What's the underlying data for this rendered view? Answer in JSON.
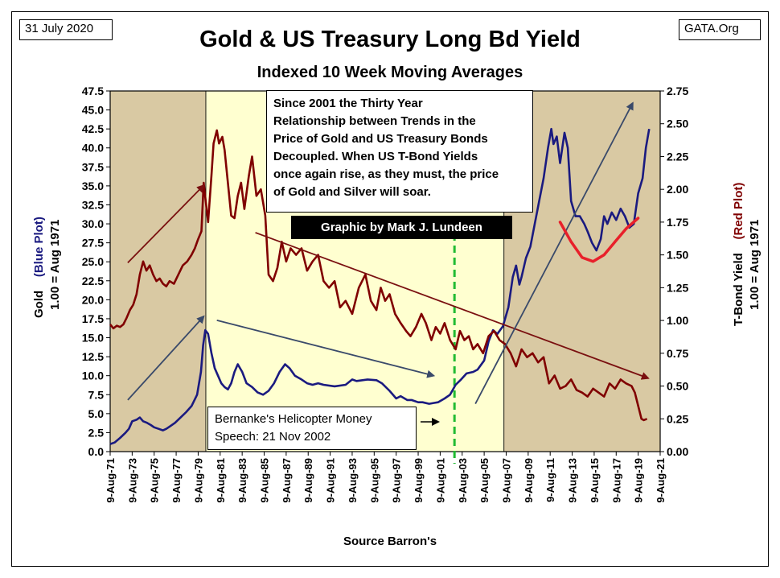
{
  "header": {
    "date": "31 July 2020",
    "source_tag": "GATA.Org",
    "title": "Gold & US Treasury Long Bd Yield",
    "subtitle": "Indexed 10 Week Moving Averages",
    "footer": "Source Barron's"
  },
  "annotations": {
    "note": "Since 2001 the Thirty Year\nRelationship between Trends in the\nPrice of Gold and US Treasury Bonds\nDecoupled.  When US T-Bond Yields\nonce again rise, as they must, the price\nof Gold and Silver will soar.",
    "credit": "Graphic by Mark J. Lundeen",
    "bernanke": "Bernanke's Helicopter Money\nSpeech: 21 Nov 2002"
  },
  "axis_labels": {
    "left_line1": "Gold",
    "left_line1_colored": "(Blue Plot)",
    "left_line2": "1.00 = Aug 1971",
    "right_line1": "T-Bond Yield",
    "right_line1_colored": "(Red Plot)",
    "right_line2": "1.00 = Aug 1971"
  },
  "colors": {
    "gold": "#1a1a80",
    "bond": "#800000",
    "trend_red": "#7a1010",
    "trend_blue": "#3a4a6a",
    "bowl": "#e8202a",
    "shade_tan": "#d9c9a3",
    "shade_yellow": "#ffffd0",
    "bernanke_line": "#22bb33"
  },
  "chart_data": {
    "type": "line",
    "x_ticks": [
      "9-Aug-71",
      "9-Aug-73",
      "9-Aug-75",
      "9-Aug-77",
      "9-Aug-79",
      "9-Aug-81",
      "9-Aug-83",
      "9-Aug-85",
      "9-Aug-87",
      "9-Aug-89",
      "9-Aug-91",
      "9-Aug-93",
      "9-Aug-95",
      "9-Aug-97",
      "9-Aug-99",
      "9-Aug-01",
      "9-Aug-03",
      "9-Aug-05",
      "9-Aug-07",
      "9-Aug-09",
      "9-Aug-11",
      "9-Aug-13",
      "9-Aug-15",
      "9-Aug-17",
      "9-Aug-19",
      "9-Aug-21"
    ],
    "x_range": [
      1971.6,
      2021.6
    ],
    "y_left": {
      "range": [
        0,
        47.5
      ],
      "ticks": [
        "0.0",
        "2.5",
        "5.0",
        "7.5",
        "10.0",
        "12.5",
        "15.0",
        "17.5",
        "20.0",
        "22.5",
        "25.0",
        "27.5",
        "30.0",
        "32.5",
        "35.0",
        "37.5",
        "40.0",
        "42.5",
        "45.0",
        "47.5"
      ]
    },
    "y_right": {
      "range": [
        0,
        2.75
      ],
      "ticks": [
        "0.00",
        "0.25",
        "0.50",
        "0.75",
        "1.00",
        "1.25",
        "1.50",
        "1.75",
        "2.00",
        "2.25",
        "2.50",
        "2.75"
      ]
    },
    "shaded_regions": [
      {
        "from": 1971.6,
        "to": 1980.3,
        "fill": "tan"
      },
      {
        "from": 1980.3,
        "to": 2007.4,
        "fill": "yellow"
      },
      {
        "from": 2007.4,
        "to": 2021.6,
        "fill": "tan"
      }
    ],
    "event_line": {
      "x": 2002.9
    },
    "series": [
      {
        "name": "Gold (Blue Plot)",
        "axis": "left",
        "x": [
          1971.6,
          1972.0,
          1972.5,
          1973.0,
          1973.3,
          1973.6,
          1974.0,
          1974.3,
          1974.6,
          1974.95,
          1975.3,
          1975.6,
          1976.0,
          1976.4,
          1976.7,
          1977.0,
          1977.5,
          1978.0,
          1978.5,
          1979.0,
          1979.5,
          1979.85,
          1980.05,
          1980.25,
          1980.5,
          1980.8,
          1981.1,
          1981.4,
          1981.7,
          1982.0,
          1982.3,
          1982.6,
          1982.9,
          1983.2,
          1983.6,
          1984.0,
          1984.5,
          1985.0,
          1985.5,
          1986.0,
          1986.5,
          1987.0,
          1987.5,
          1987.9,
          1988.4,
          1989.0,
          1989.5,
          1990.0,
          1990.5,
          1991.0,
          1992.0,
          1993.0,
          1993.6,
          1994.0,
          1995.0,
          1995.8,
          1996.3,
          1997.0,
          1997.6,
          1998.0,
          1998.6,
          1999.0,
          1999.6,
          2000.0,
          2000.6,
          2001.0,
          2001.4,
          2002.0,
          2002.5,
          2003.0,
          2003.5,
          2004.0,
          2004.6,
          2005.0,
          2005.6,
          2006.0,
          2006.4,
          2006.8,
          2007.3,
          2007.8,
          2008.2,
          2008.5,
          2008.8,
          2009.0,
          2009.4,
          2009.8,
          2010.2,
          2010.6,
          2011.0,
          2011.4,
          2011.7,
          2011.9,
          2012.2,
          2012.5,
          2012.9,
          2013.2,
          2013.5,
          2013.9,
          2014.3,
          2014.7,
          2015.0,
          2015.4,
          2015.8,
          2016.2,
          2016.5,
          2016.8,
          2017.2,
          2017.6,
          2018.0,
          2018.4,
          2018.8,
          2019.2,
          2019.6,
          2020.0,
          2020.3,
          2020.6
        ],
        "values": [
          1.0,
          1.2,
          1.8,
          2.5,
          3.0,
          4.0,
          4.2,
          4.5,
          4.0,
          3.8,
          3.5,
          3.2,
          3.0,
          2.8,
          3.0,
          3.3,
          3.8,
          4.5,
          5.2,
          6.0,
          7.5,
          10.5,
          14.0,
          16.0,
          15.5,
          13.0,
          11.0,
          10.0,
          9.0,
          8.5,
          8.2,
          9.0,
          10.5,
          11.5,
          10.5,
          9.0,
          8.5,
          7.8,
          7.5,
          8.0,
          9.0,
          10.5,
          11.5,
          11.0,
          10.0,
          9.5,
          9.0,
          8.8,
          9.0,
          8.8,
          8.6,
          8.8,
          9.5,
          9.3,
          9.5,
          9.4,
          9.0,
          8.0,
          7.0,
          7.3,
          6.8,
          6.8,
          6.5,
          6.5,
          6.3,
          6.4,
          6.5,
          7.0,
          7.5,
          8.8,
          9.5,
          10.3,
          10.5,
          10.8,
          12.0,
          14.5,
          16.0,
          15.5,
          16.5,
          19.0,
          23.0,
          24.5,
          22.0,
          23.0,
          25.5,
          27.0,
          30.0,
          33.0,
          36.0,
          40.0,
          42.5,
          40.5,
          41.5,
          38.0,
          42.0,
          40.0,
          33.0,
          31.0,
          31.0,
          30.0,
          29.0,
          27.5,
          26.5,
          28.0,
          31.0,
          30.0,
          31.5,
          30.5,
          32.0,
          31.0,
          29.5,
          30.0,
          34.0,
          36.0,
          40.0,
          42.5
        ]
      },
      {
        "name": "T-Bond Yield (Red Plot)",
        "axis": "right",
        "x": [
          1971.6,
          1971.9,
          1972.2,
          1972.5,
          1972.8,
          1973.1,
          1973.4,
          1973.7,
          1974.0,
          1974.3,
          1974.6,
          1974.9,
          1975.2,
          1975.5,
          1975.8,
          1976.1,
          1976.4,
          1976.7,
          1977.0,
          1977.4,
          1977.8,
          1978.2,
          1978.6,
          1979.0,
          1979.3,
          1979.6,
          1979.9,
          1980.1,
          1980.3,
          1980.5,
          1980.8,
          1981.0,
          1981.3,
          1981.5,
          1981.8,
          1982.0,
          1982.3,
          1982.6,
          1982.9,
          1983.2,
          1983.5,
          1983.8,
          1984.2,
          1984.5,
          1984.9,
          1985.3,
          1985.7,
          1986.0,
          1986.4,
          1986.8,
          1987.2,
          1987.6,
          1988.0,
          1988.5,
          1989.0,
          1989.5,
          1990.0,
          1990.5,
          1991.0,
          1991.5,
          1992.0,
          1992.5,
          1993.0,
          1993.6,
          1994.2,
          1994.8,
          1995.3,
          1995.8,
          1996.2,
          1996.6,
          1997.0,
          1997.5,
          1998.0,
          1998.5,
          1998.9,
          1999.4,
          1999.9,
          2000.3,
          2000.8,
          2001.2,
          2001.6,
          2002.0,
          2002.5,
          2003.0,
          2003.4,
          2003.8,
          2004.2,
          2004.6,
          2005.0,
          2005.5,
          2006.0,
          2006.5,
          2007.0,
          2007.5,
          2008.0,
          2008.5,
          2009.0,
          2009.5,
          2010.0,
          2010.5,
          2011.0,
          2011.5,
          2012.0,
          2012.5,
          2013.0,
          2013.5,
          2014.0,
          2014.5,
          2015.0,
          2015.5,
          2016.0,
          2016.5,
          2017.0,
          2017.5,
          2018.0,
          2018.5,
          2019.0,
          2019.3,
          2019.6,
          2019.9,
          2020.1,
          2020.4
        ],
        "values": [
          0.97,
          0.94,
          0.96,
          0.95,
          0.97,
          1.02,
          1.08,
          1.12,
          1.2,
          1.35,
          1.45,
          1.38,
          1.42,
          1.35,
          1.3,
          1.32,
          1.28,
          1.26,
          1.3,
          1.28,
          1.35,
          1.42,
          1.45,
          1.5,
          1.55,
          1.62,
          1.68,
          2.05,
          1.9,
          1.75,
          2.1,
          2.35,
          2.45,
          2.35,
          2.4,
          2.3,
          2.05,
          1.8,
          1.78,
          1.95,
          2.05,
          1.85,
          2.1,
          2.25,
          1.95,
          2.0,
          1.8,
          1.35,
          1.3,
          1.4,
          1.6,
          1.45,
          1.55,
          1.5,
          1.55,
          1.38,
          1.45,
          1.5,
          1.3,
          1.25,
          1.3,
          1.1,
          1.15,
          1.05,
          1.25,
          1.35,
          1.15,
          1.08,
          1.25,
          1.15,
          1.2,
          1.05,
          0.98,
          0.92,
          0.88,
          0.95,
          1.05,
          0.98,
          0.85,
          0.95,
          0.9,
          0.98,
          0.85,
          0.78,
          0.92,
          0.85,
          0.88,
          0.78,
          0.82,
          0.75,
          0.88,
          0.92,
          0.85,
          0.82,
          0.75,
          0.65,
          0.78,
          0.72,
          0.75,
          0.68,
          0.72,
          0.52,
          0.58,
          0.48,
          0.5,
          0.55,
          0.47,
          0.45,
          0.42,
          0.48,
          0.45,
          0.42,
          0.52,
          0.48,
          0.55,
          0.52,
          0.5,
          0.45,
          0.35,
          0.25,
          0.24,
          0.25
        ]
      }
    ],
    "trend_lines": [
      {
        "color": "red",
        "x": [
          1973.2,
          1980.1
        ],
        "y_axis": "right",
        "y": [
          1.44,
          2.03
        ]
      },
      {
        "color": "red",
        "x": [
          1984.8,
          2020.5
        ],
        "y_axis": "right",
        "y": [
          1.67,
          0.56
        ]
      },
      {
        "color": "blue",
        "x": [
          1973.2,
          1980.1
        ],
        "y_axis": "left",
        "y": [
          6.8,
          17.8
        ]
      },
      {
        "color": "blue",
        "x": [
          1981.3,
          2001.0
        ],
        "y_axis": "left",
        "y": [
          17.3,
          10.0
        ]
      },
      {
        "color": "blue",
        "x": [
          2004.8,
          2019.1
        ],
        "y_axis": "left",
        "y": [
          6.3,
          45.9
        ]
      }
    ],
    "bowl_curve": {
      "x": [
        2012.5,
        2013.5,
        2014.5,
        2015.5,
        2016.5,
        2017.5,
        2018.5,
        2019.6
      ],
      "y_axis": "right",
      "y": [
        1.75,
        1.6,
        1.48,
        1.45,
        1.5,
        1.6,
        1.7,
        1.78
      ]
    }
  }
}
